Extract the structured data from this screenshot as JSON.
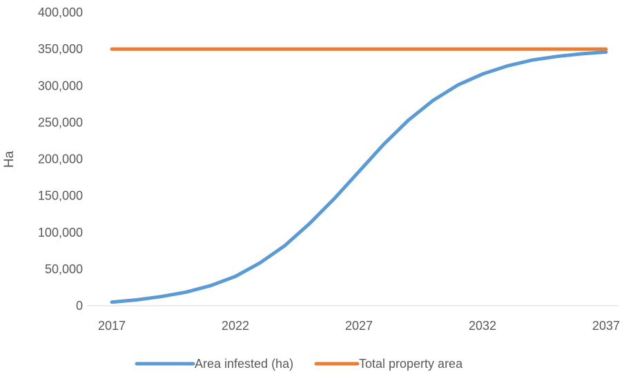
{
  "chart_data": {
    "type": "line",
    "title": "",
    "xlabel": "",
    "ylabel": "Ha",
    "x": [
      2017,
      2018,
      2019,
      2020,
      2021,
      2022,
      2023,
      2024,
      2025,
      2026,
      2027,
      2028,
      2029,
      2030,
      2031,
      2032,
      2033,
      2034,
      2035,
      2036,
      2037
    ],
    "x_ticks": [
      "2017",
      "2022",
      "2027",
      "2032",
      "2037"
    ],
    "x_tick_values": [
      2017,
      2022,
      2027,
      2032,
      2037
    ],
    "xlim": [
      2017,
      2037
    ],
    "ylim": [
      0,
      400000
    ],
    "y_ticks": [
      "0",
      "50,000",
      "100,000",
      "150,000",
      "200,000",
      "250,000",
      "300,000",
      "350,000",
      "400,000"
    ],
    "y_tick_values": [
      0,
      50000,
      100000,
      150000,
      200000,
      250000,
      300000,
      350000,
      400000
    ],
    "grid": false,
    "legend_position": "bottom",
    "series": [
      {
        "name": "Area infested (ha)",
        "color": "#5B9BD5",
        "values": [
          5000,
          8000,
          12500,
          18500,
          27500,
          40000,
          58500,
          82000,
          112000,
          146000,
          183000,
          220000,
          253000,
          280000,
          301000,
          316000,
          327000,
          335000,
          340000,
          343500,
          346000
        ]
      },
      {
        "name": "Total property area",
        "color": "#ED7D31",
        "values": [
          350000,
          350000,
          350000,
          350000,
          350000,
          350000,
          350000,
          350000,
          350000,
          350000,
          350000,
          350000,
          350000,
          350000,
          350000,
          350000,
          350000,
          350000,
          350000,
          350000,
          350000
        ]
      }
    ]
  }
}
